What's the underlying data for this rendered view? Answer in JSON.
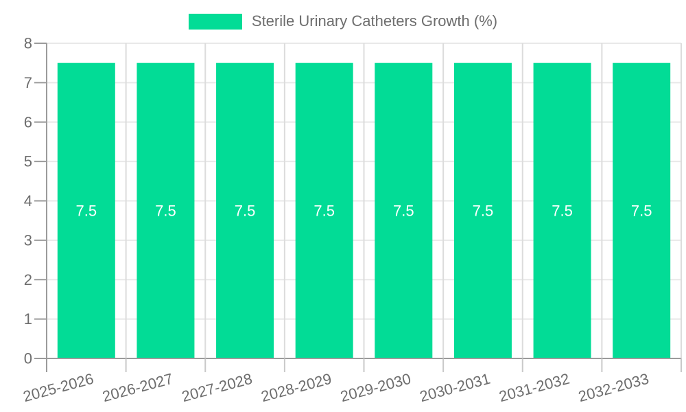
{
  "chart_data": {
    "type": "bar",
    "title": "Sterile Urinary Catheters Growth (%)",
    "categories": [
      "2025-2026",
      "2026-2027",
      "2027-2028",
      "2028-2029",
      "2029-2030",
      "2030-2031",
      "2031-2032",
      "2032-2033"
    ],
    "values": [
      7.5,
      7.5,
      7.5,
      7.5,
      7.5,
      7.5,
      7.5,
      7.5
    ],
    "xlabel": "",
    "ylabel": "",
    "ylim": [
      0,
      8
    ],
    "ytick_step": 1,
    "grid": true,
    "legend_position": "top",
    "colors": {
      "bar": "#02DC96",
      "h_grid": "#e8e8e8",
      "v_grid": "#dcdcdc",
      "axis": "#9b9b9b",
      "x_tick": "#c9c9c9",
      "text": "#6d6d6d",
      "bar_label": "#ffffff"
    }
  }
}
